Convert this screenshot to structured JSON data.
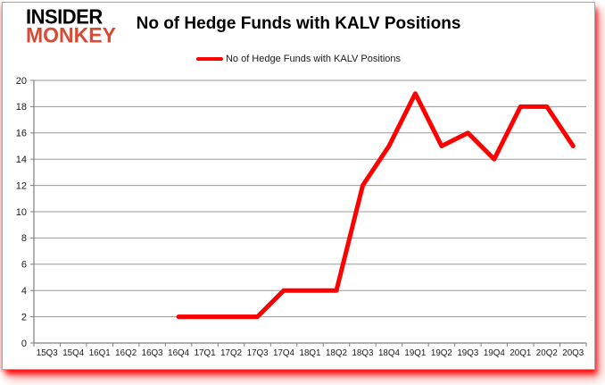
{
  "logo": {
    "line1": "INSIDER",
    "line2": "MONKEY",
    "accent_color": "#d94a33"
  },
  "header": {
    "title": "No of Hedge Funds with KALV Positions"
  },
  "legend": {
    "label": "No of Hedge Funds with KALV Positions",
    "line_color": "#ff0000"
  },
  "chart_data": {
    "type": "line",
    "title": "No of Hedge Funds with KALV Positions",
    "series_name": "No of Hedge Funds with KALV Positions",
    "categories": [
      "15Q3",
      "15Q4",
      "16Q1",
      "16Q2",
      "16Q3",
      "16Q4",
      "17Q1",
      "17Q2",
      "17Q3",
      "17Q4",
      "18Q1",
      "18Q2",
      "18Q3",
      "18Q4",
      "19Q1",
      "19Q2",
      "19Q3",
      "19Q4",
      "20Q1",
      "20Q2",
      "20Q3"
    ],
    "values": [
      null,
      null,
      null,
      null,
      null,
      2,
      2,
      2,
      2,
      4,
      4,
      4,
      12,
      15,
      19,
      15,
      16,
      14,
      18,
      18,
      15
    ],
    "xlabel": "",
    "ylabel": "",
    "ylim": [
      0,
      20
    ],
    "ytick_step": 2,
    "grid": true,
    "legend_position": "top-center",
    "colors": {
      "line": "#ff0000",
      "grid": "#999999",
      "axis": "#7f7f7f",
      "tick_label": "#1a1a1a"
    }
  }
}
